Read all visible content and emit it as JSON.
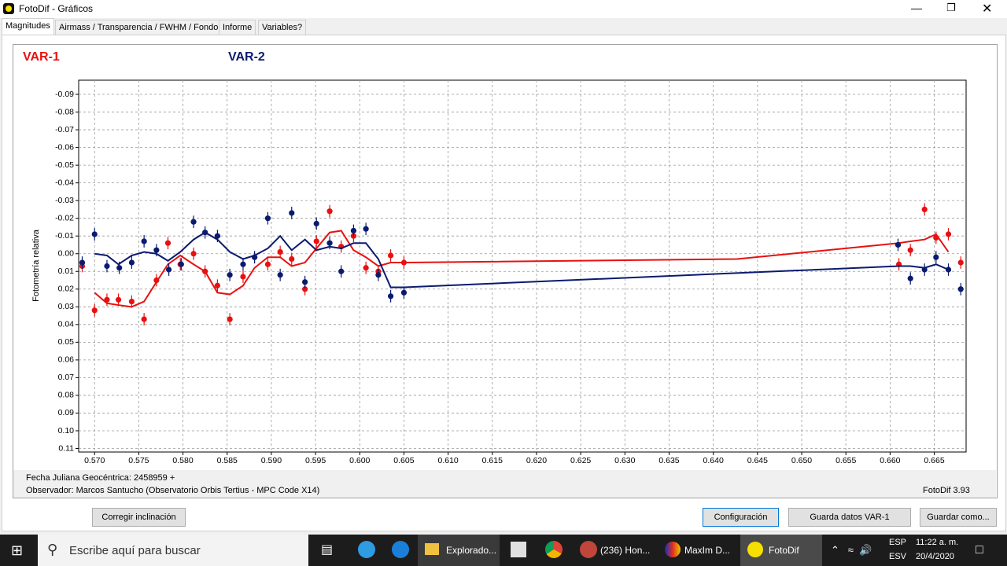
{
  "window": {
    "title": "FotoDif - Gráficos"
  },
  "tabs": [
    "Magnitudes",
    "Airmass / Transparencia / FWHM / Fondo",
    "Informe",
    "Variables?"
  ],
  "chart_data": {
    "type": "scatter",
    "ylabel": "Fotometría relativa",
    "grid": true,
    "xlim": [
      0.5682,
      0.6686
    ],
    "ylim": [
      0.112,
      -0.098
    ],
    "xticks": [
      {
        "value": 0.57,
        "label": "0.570"
      },
      0.575,
      {
        "value": 0.58,
        "label": "0.580"
      },
      0.585,
      {
        "value": 0.59,
        "label": "0.590"
      },
      0.595,
      {
        "value": 0.6,
        "label": "0.600"
      },
      0.605,
      {
        "value": 0.61,
        "label": "0.610"
      },
      0.615,
      {
        "value": 0.62,
        "label": "0.620"
      },
      0.625,
      {
        "value": 0.63,
        "label": "0.630"
      },
      0.635,
      {
        "value": 0.64,
        "label": "0.640"
      },
      0.645,
      {
        "value": 0.65,
        "label": "0.650"
      },
      0.655,
      {
        "value": 0.66,
        "label": "0.660"
      },
      0.665
    ],
    "yticks": [
      -0.09,
      -0.08,
      -0.07,
      -0.06,
      -0.05,
      -0.04,
      -0.03,
      -0.02,
      -0.01,
      {
        "value": 0,
        "label": "0.00"
      },
      0.01,
      0.02,
      0.03,
      0.04,
      0.05,
      0.06,
      0.07,
      0.08,
      0.09,
      {
        "value": 0.1,
        "label": "0.10"
      },
      0.11
    ],
    "series": [
      {
        "name": "VAR-1",
        "color": "#e81010",
        "error": 0.0035,
        "x": [
          0.5686,
          0.57,
          0.5714,
          0.5727,
          0.5742,
          0.5756,
          0.577,
          0.5783,
          0.5797,
          0.5812,
          0.5825,
          0.5839,
          0.5853,
          0.5868,
          0.5881,
          0.5896,
          0.591,
          0.5923,
          0.5938,
          0.5951,
          0.5966,
          0.5979,
          0.5993,
          0.6007,
          0.6021,
          0.6035,
          0.605,
          0.661,
          0.6623,
          0.6639,
          0.6652,
          0.6666,
          0.668
        ],
        "values": [
          0.007,
          0.032,
          0.026,
          0.026,
          0.027,
          0.037,
          0.015,
          -0.006,
          0.006,
          0.0,
          0.01,
          0.018,
          0.037,
          0.013,
          0.002,
          0.006,
          -0.001,
          0.003,
          0.02,
          -0.007,
          -0.024,
          -0.004,
          -0.01,
          0.008,
          0.01,
          0.001,
          0.005,
          0.006,
          -0.002,
          -0.025,
          -0.009,
          -0.011,
          0.005
        ],
        "trend": {
          "x": [
            0.57,
            0.5714,
            0.5727,
            0.5742,
            0.5756,
            0.577,
            0.5783,
            0.5797,
            0.5812,
            0.5825,
            0.5839,
            0.5853,
            0.5868,
            0.5881,
            0.5896,
            0.591,
            0.5923,
            0.5938,
            0.5951,
            0.5966,
            0.5979,
            0.5993,
            0.6007,
            0.6021,
            0.6035,
            0.605,
            0.6427,
            0.661,
            0.6623,
            0.6639,
            0.6652,
            0.6666
          ],
          "values": [
            0.022,
            0.028,
            0.029,
            0.03,
            0.027,
            0.016,
            0.006,
            0.001,
            0.006,
            0.01,
            0.022,
            0.023,
            0.018,
            0.008,
            0.002,
            0.002,
            0.007,
            0.005,
            -0.003,
            -0.012,
            -0.013,
            -0.002,
            0.002,
            0.007,
            0.005,
            0.005,
            0.003,
            -0.006,
            -0.007,
            -0.008,
            -0.011,
            -0.001
          ]
        }
      },
      {
        "name": "VAR-2",
        "color": "#0a1a6e",
        "error": 0.0035,
        "x": [
          0.5686,
          0.57,
          0.5714,
          0.5728,
          0.5742,
          0.5756,
          0.577,
          0.5784,
          0.5798,
          0.5812,
          0.5825,
          0.5839,
          0.5853,
          0.5868,
          0.5881,
          0.5896,
          0.591,
          0.5923,
          0.5938,
          0.5951,
          0.5966,
          0.5979,
          0.5993,
          0.6007,
          0.6021,
          0.6035,
          0.605,
          0.6609,
          0.6623,
          0.6639,
          0.6652,
          0.6666,
          0.668
        ],
        "values": [
          0.005,
          -0.011,
          0.007,
          0.008,
          0.005,
          -0.007,
          -0.002,
          0.009,
          0.006,
          -0.018,
          -0.012,
          -0.01,
          0.012,
          0.006,
          0.002,
          -0.02,
          0.012,
          -0.023,
          0.016,
          -0.017,
          -0.006,
          0.01,
          -0.013,
          -0.014,
          0.012,
          0.024,
          0.022,
          -0.005,
          0.014,
          0.009,
          0.002,
          0.009,
          0.02
        ],
        "trend": {
          "x": [
            0.57,
            0.5714,
            0.5727,
            0.5742,
            0.5756,
            0.577,
            0.5783,
            0.5797,
            0.5812,
            0.5825,
            0.5839,
            0.5853,
            0.5868,
            0.5881,
            0.5896,
            0.591,
            0.5923,
            0.5938,
            0.5951,
            0.5966,
            0.5979,
            0.5993,
            0.6007,
            0.6021,
            0.6035,
            0.605,
            0.661,
            0.6623,
            0.6639,
            0.6652,
            0.6666
          ],
          "values": [
            0.0,
            0.001,
            0.006,
            0.001,
            -0.001,
            0.0,
            0.004,
            -0.001,
            -0.008,
            -0.012,
            -0.008,
            -0.001,
            0.003,
            0.001,
            -0.003,
            -0.01,
            -0.002,
            -0.008,
            -0.002,
            -0.004,
            -0.003,
            -0.006,
            -0.006,
            0.003,
            0.019,
            0.019,
            0.007,
            0.007,
            0.008,
            0.006,
            0.009
          ]
        }
      }
    ]
  },
  "footer": {
    "date": "Fecha Juliana Geocéntrica: 2458959 +",
    "observer": "Observador: Marcos Santucho (Observatorio Orbis Tertius - MPC Code X14)",
    "version": "FotoDif 3.93"
  },
  "buttons": [
    "Corregir inclinación",
    "Configuración",
    "Guarda datos VAR-1",
    "Guardar como..."
  ],
  "taskbar": {
    "search": "Escribe aquí para buscar",
    "apps": [
      "Explorado...",
      "(236) Hon...",
      "MaxIm D...",
      "FotoDif"
    ],
    "language": [
      "ESP",
      "ESV"
    ],
    "time": "11:22 a. m.",
    "date": "20/4/2020"
  }
}
